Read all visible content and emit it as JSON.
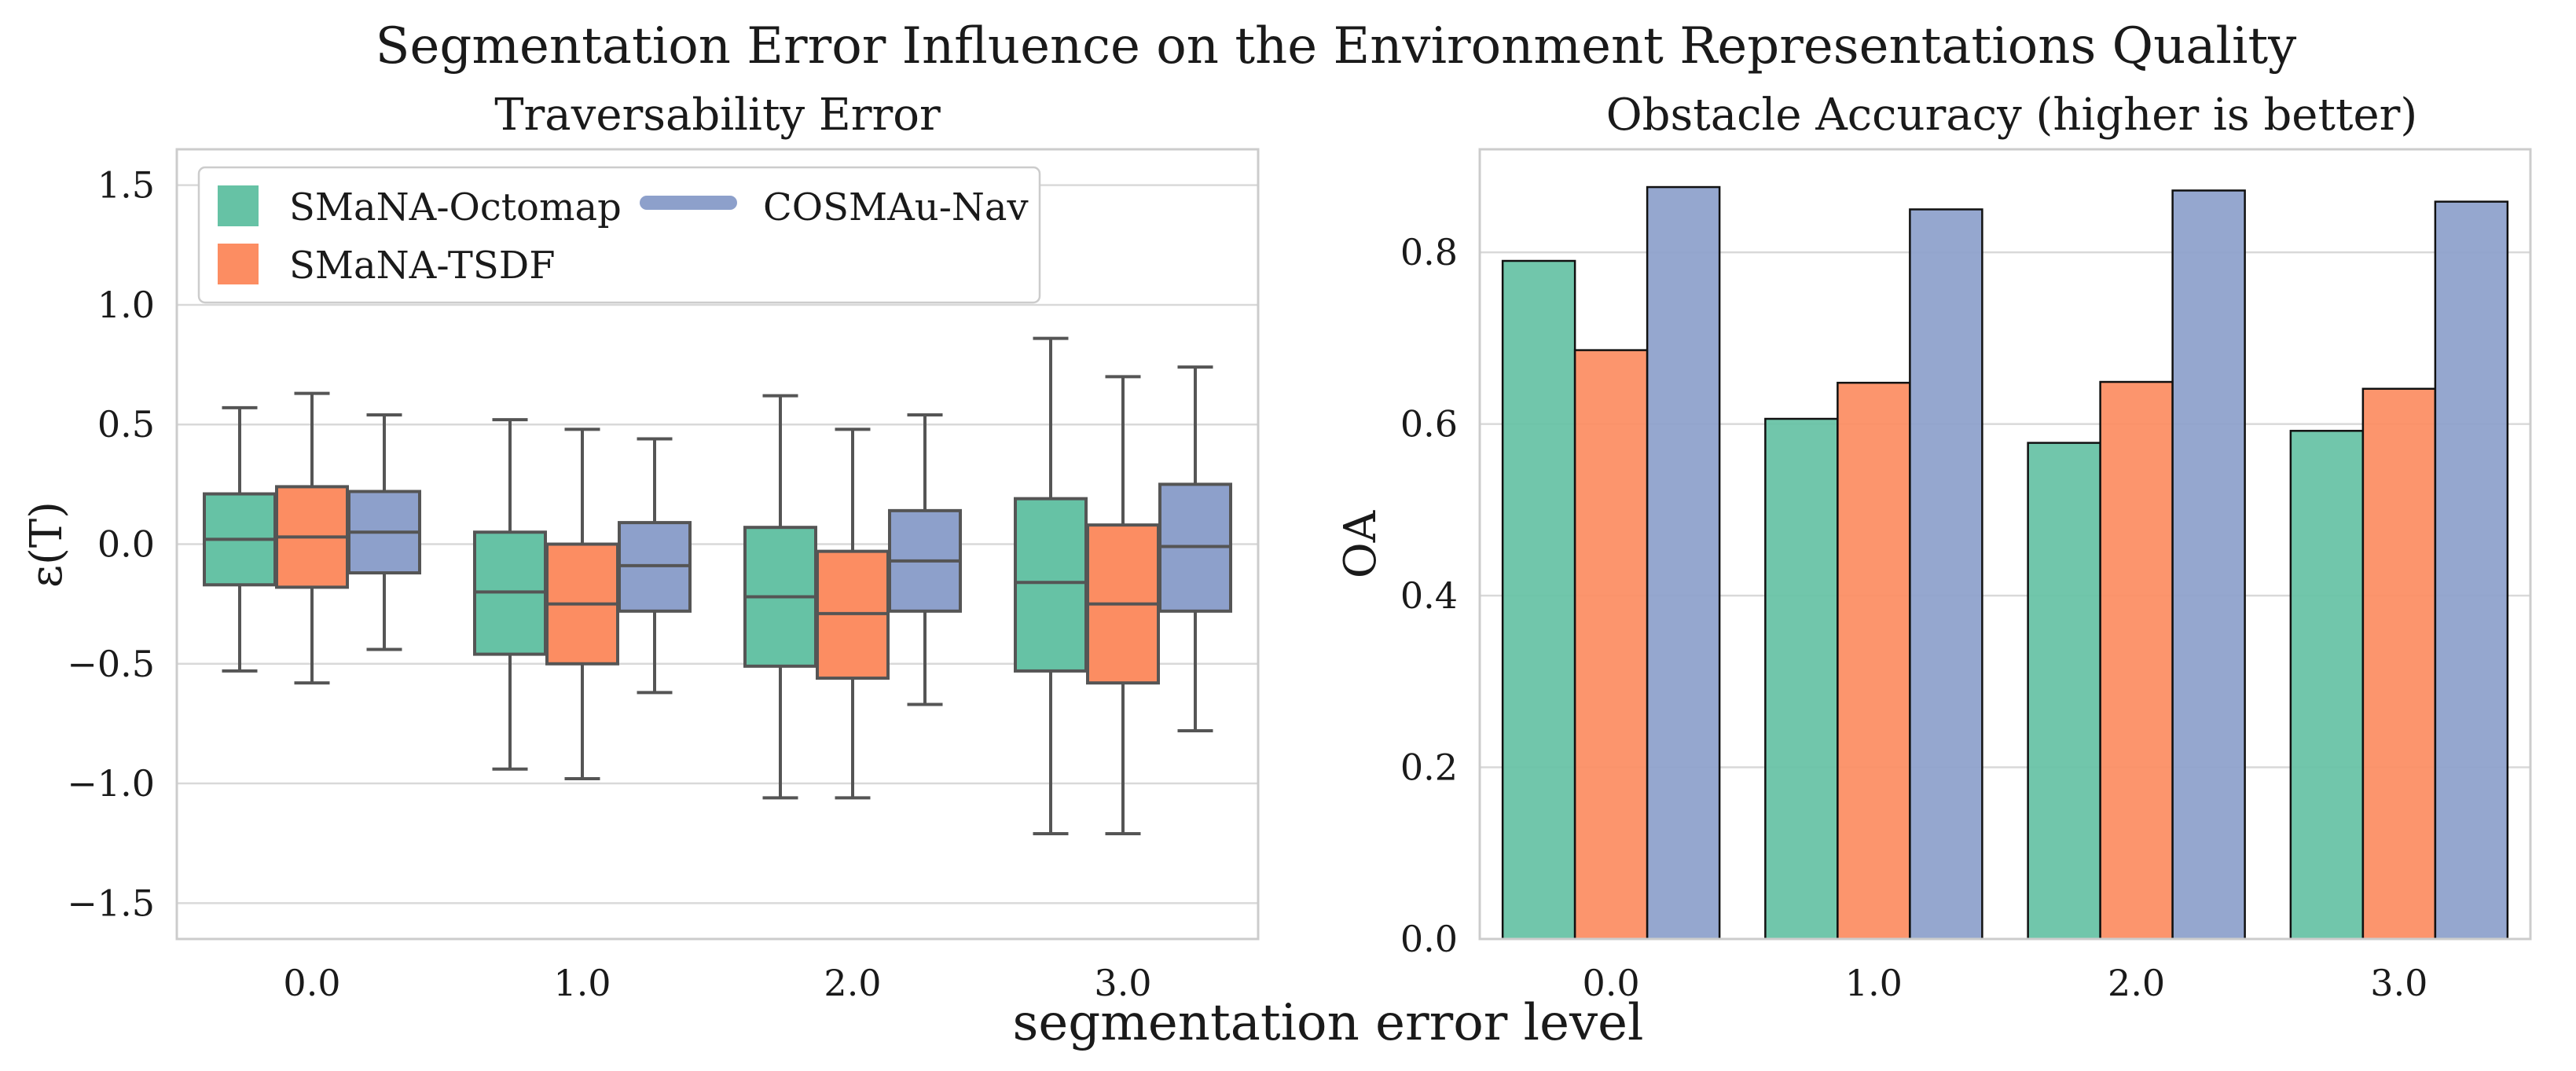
{
  "suptitle": "Segmentation Error Influence on the Environment Representations Quality",
  "shared_xlabel": "segmentation error level",
  "colors": {
    "octomap": "#66c2a5",
    "tsdf": "#fc8d62",
    "cosmau": "#8da0cb",
    "grid": "#d9d9d9",
    "axis": "#cccccc",
    "whisker": "#555555",
    "bar_edge": "#111111"
  },
  "chart_data": [
    {
      "type": "box",
      "title": "Traversability Error",
      "ylabel": "ε(T)",
      "xlabel": "",
      "ylim": [
        -1.65,
        1.65
      ],
      "yticks": [
        -1.5,
        -1.0,
        -0.5,
        0.0,
        0.5,
        1.0,
        1.5
      ],
      "ytick_labels": [
        "−1.5",
        "−1.0",
        "−0.5",
        "0.0",
        "0.5",
        "1.0",
        "1.5"
      ],
      "categories": [
        "0.0",
        "1.0",
        "2.0",
        "3.0"
      ],
      "legend": {
        "location": "upper-left",
        "entries": [
          {
            "label": "SMaNA-Octomap",
            "key": "octomap",
            "marker": "square"
          },
          {
            "label": "SMaNA-TSDF",
            "key": "tsdf",
            "marker": "square"
          },
          {
            "label": "COSMAu-Nav",
            "key": "cosmau",
            "marker": "line"
          }
        ]
      },
      "series": [
        {
          "name": "SMaNA-Octomap",
          "key": "octomap",
          "boxes": [
            {
              "whislo": -0.53,
              "q1": -0.17,
              "med": 0.02,
              "q3": 0.21,
              "whishi": 0.57
            },
            {
              "whislo": -0.94,
              "q1": -0.46,
              "med": -0.2,
              "q3": 0.05,
              "whishi": 0.52
            },
            {
              "whislo": -1.06,
              "q1": -0.51,
              "med": -0.22,
              "q3": 0.07,
              "whishi": 0.62
            },
            {
              "whislo": -1.21,
              "q1": -0.53,
              "med": -0.16,
              "q3": 0.19,
              "whishi": 0.86
            }
          ]
        },
        {
          "name": "SMaNA-TSDF",
          "key": "tsdf",
          "boxes": [
            {
              "whislo": -0.58,
              "q1": -0.18,
              "med": 0.03,
              "q3": 0.24,
              "whishi": 0.63
            },
            {
              "whislo": -0.98,
              "q1": -0.5,
              "med": -0.25,
              "q3": 0.0,
              "whishi": 0.48
            },
            {
              "whislo": -1.06,
              "q1": -0.56,
              "med": -0.29,
              "q3": -0.03,
              "whishi": 0.48
            },
            {
              "whislo": -1.21,
              "q1": -0.58,
              "med": -0.25,
              "q3": 0.08,
              "whishi": 0.7
            }
          ]
        },
        {
          "name": "COSMAu-Nav",
          "key": "cosmau",
          "boxes": [
            {
              "whislo": -0.44,
              "q1": -0.12,
              "med": 0.05,
              "q3": 0.22,
              "whishi": 0.54
            },
            {
              "whislo": -0.62,
              "q1": -0.28,
              "med": -0.09,
              "q3": 0.09,
              "whishi": 0.44
            },
            {
              "whislo": -0.67,
              "q1": -0.28,
              "med": -0.07,
              "q3": 0.14,
              "whishi": 0.54
            },
            {
              "whislo": -0.78,
              "q1": -0.28,
              "med": -0.01,
              "q3": 0.25,
              "whishi": 0.74
            }
          ]
        }
      ]
    },
    {
      "type": "bar",
      "title": "Obstacle Accuracy (higher is better)",
      "ylabel": "OA",
      "xlabel": "",
      "ylim": [
        0,
        0.92
      ],
      "yticks": [
        0.0,
        0.2,
        0.4,
        0.6,
        0.8
      ],
      "ytick_labels": [
        "0.0",
        "0.2",
        "0.4",
        "0.6",
        "0.8"
      ],
      "categories": [
        "0.0",
        "1.0",
        "2.0",
        "3.0"
      ],
      "series": [
        {
          "name": "SMaNA-Octomap",
          "key": "octomap",
          "values": [
            0.79,
            0.606,
            0.578,
            0.592
          ]
        },
        {
          "name": "SMaNA-TSDF",
          "key": "tsdf",
          "values": [
            0.686,
            0.648,
            0.649,
            0.641
          ]
        },
        {
          "name": "COSMAu-Nav",
          "key": "cosmau",
          "values": [
            0.876,
            0.85,
            0.872,
            0.859
          ]
        }
      ]
    }
  ]
}
